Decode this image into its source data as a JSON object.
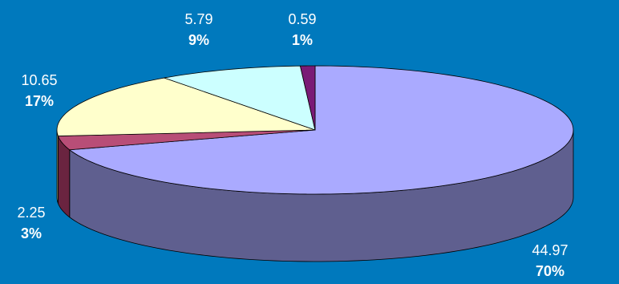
{
  "chart_data": {
    "type": "pie",
    "style": "3d",
    "title": "",
    "legend": "none",
    "slices": [
      {
        "value": 44.97,
        "value_label": "44.97",
        "percent_label": "70%",
        "top_color": "#aaaaff",
        "side_color": "#5f5f8f"
      },
      {
        "value": 2.25,
        "value_label": "2.25",
        "percent_label": "3%",
        "top_color": "#b84e77",
        "side_color": "#6a2440"
      },
      {
        "value": 10.65,
        "value_label": "10.65",
        "percent_label": "17%",
        "top_color": "#ffffcc",
        "side_color": "#b0b07a"
      },
      {
        "value": 5.79,
        "value_label": "5.79",
        "percent_label": "9%",
        "top_color": "#ccffff",
        "side_color": "#7fb2b2"
      },
      {
        "value": 0.59,
        "value_label": "0.59",
        "percent_label": "1%",
        "top_color": "#7a1a76",
        "side_color": "#4a0f47"
      }
    ]
  }
}
